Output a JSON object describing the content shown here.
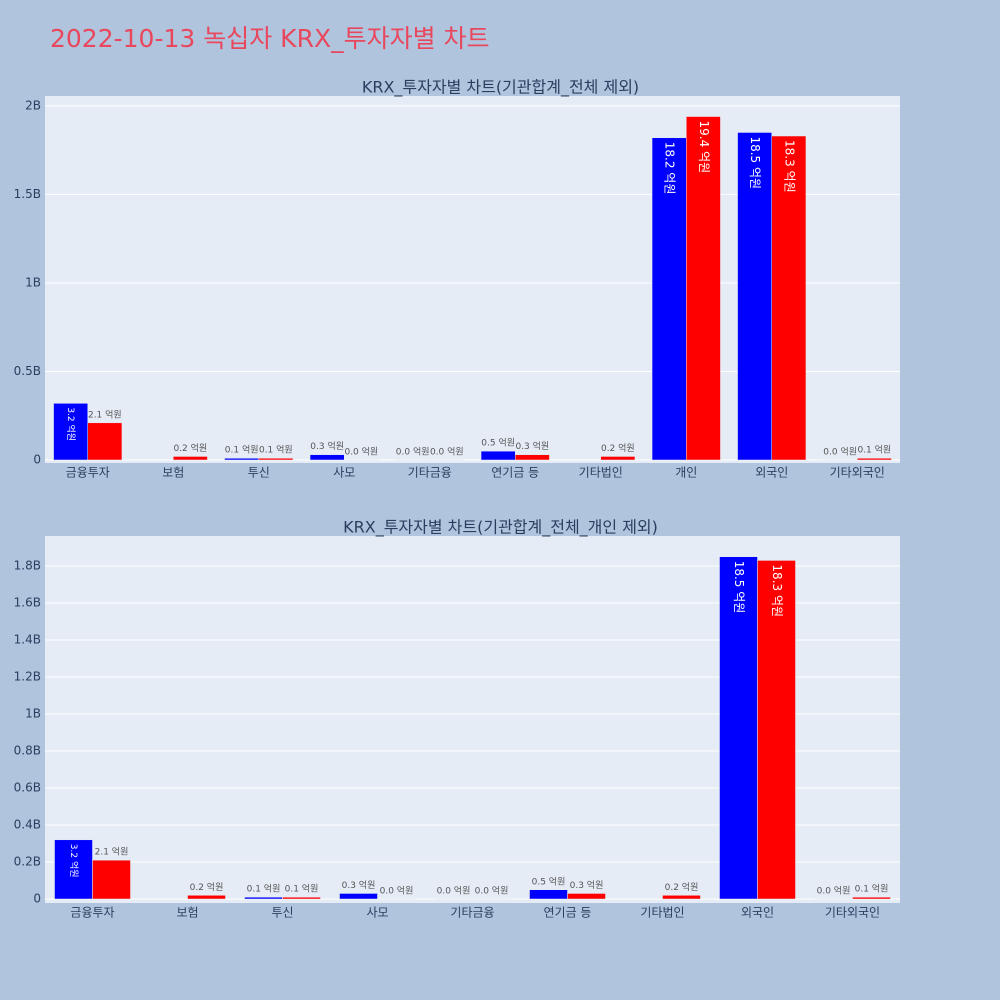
{
  "title": "2022-10-13 녹십자 KRX_투자자별 차트",
  "chart_data": [
    {
      "type": "bar",
      "title": "KRX_투자자별 차트(기관합계_전체 제외)",
      "categories": [
        "금융투자",
        "보험",
        "투신",
        "사모",
        "기타금융",
        "연기금 등",
        "기타법인",
        "개인",
        "외국인",
        "기타외국인"
      ],
      "series": [
        {
          "color": "#0000ff",
          "values": [
            320000000,
            null,
            10000000,
            30000000,
            0,
            50000000,
            null,
            1820000000,
            1850000000,
            0
          ],
          "value_labels": [
            "3.2 억원",
            null,
            "0.1 억원",
            "0.3 억원",
            "0.0 억원",
            "0.5 억원",
            null,
            "18.2 억원",
            "18.5 억원",
            "0.0 억원"
          ]
        },
        {
          "color": "#ff0000",
          "values": [
            210000000,
            20000000,
            10000000,
            0,
            0,
            30000000,
            20000000,
            1940000000,
            1830000000,
            10000000
          ],
          "value_labels": [
            "2.1 억원",
            "0.2 억원",
            "0.1 억원",
            "0.0 억원",
            "0.0 억원",
            "0.3 억원",
            "0.2 억원",
            "19.4 억원",
            "18.3 억원",
            "0.1 억원"
          ]
        }
      ],
      "ylim": [
        -17000000,
        2056000000
      ],
      "yticks": [
        0,
        {
          "value": 500000000,
          "label": "0.5B"
        },
        {
          "value": 1000000000,
          "label": "1B"
        },
        {
          "value": 1500000000,
          "label": "1.5B"
        },
        {
          "value": 2000000000,
          "label": "2B"
        }
      ],
      "grid": true
    },
    {
      "type": "bar",
      "title": "KRX_투자자별 차트(기관합계_전체_개인 제외)",
      "categories": [
        "금융투자",
        "보험",
        "투신",
        "사모",
        "기타금융",
        "연기금 등",
        "기타법인",
        "외국인",
        "기타외국인"
      ],
      "series": [
        {
          "color": "#0000ff",
          "values": [
            320000000,
            null,
            10000000,
            30000000,
            0,
            50000000,
            null,
            1850000000,
            0
          ],
          "value_labels": [
            "3.2 억원",
            null,
            "0.1 억원",
            "0.3 억원",
            "0.0 억원",
            "0.5 억원",
            null,
            "18.5 억원",
            "0.0 억원"
          ]
        },
        {
          "color": "#ff0000",
          "values": [
            210000000,
            20000000,
            10000000,
            0,
            0,
            30000000,
            20000000,
            1830000000,
            10000000
          ],
          "value_labels": [
            "2.1 억원",
            "0.2 억원",
            "0.1 억원",
            "0.0 억원",
            "0.0 억원",
            "0.3 억원",
            "0.2 억원",
            "18.3 억원",
            "0.1 억원"
          ]
        }
      ],
      "ylim": [
        -21600000,
        1962000000
      ],
      "yticks": [
        0,
        {
          "value": 200000000,
          "label": "0.2B"
        },
        {
          "value": 400000000,
          "label": "0.4B"
        },
        {
          "value": 600000000,
          "label": "0.6B"
        },
        {
          "value": 800000000,
          "label": "0.8B"
        },
        {
          "value": 1000000000,
          "label": "1B"
        },
        {
          "value": 1200000000,
          "label": "1.2B"
        },
        {
          "value": 1400000000,
          "label": "1.4B"
        },
        {
          "value": 1600000000,
          "label": "1.6B"
        },
        {
          "value": 1800000000,
          "label": "1.8B"
        }
      ],
      "grid": true
    }
  ]
}
